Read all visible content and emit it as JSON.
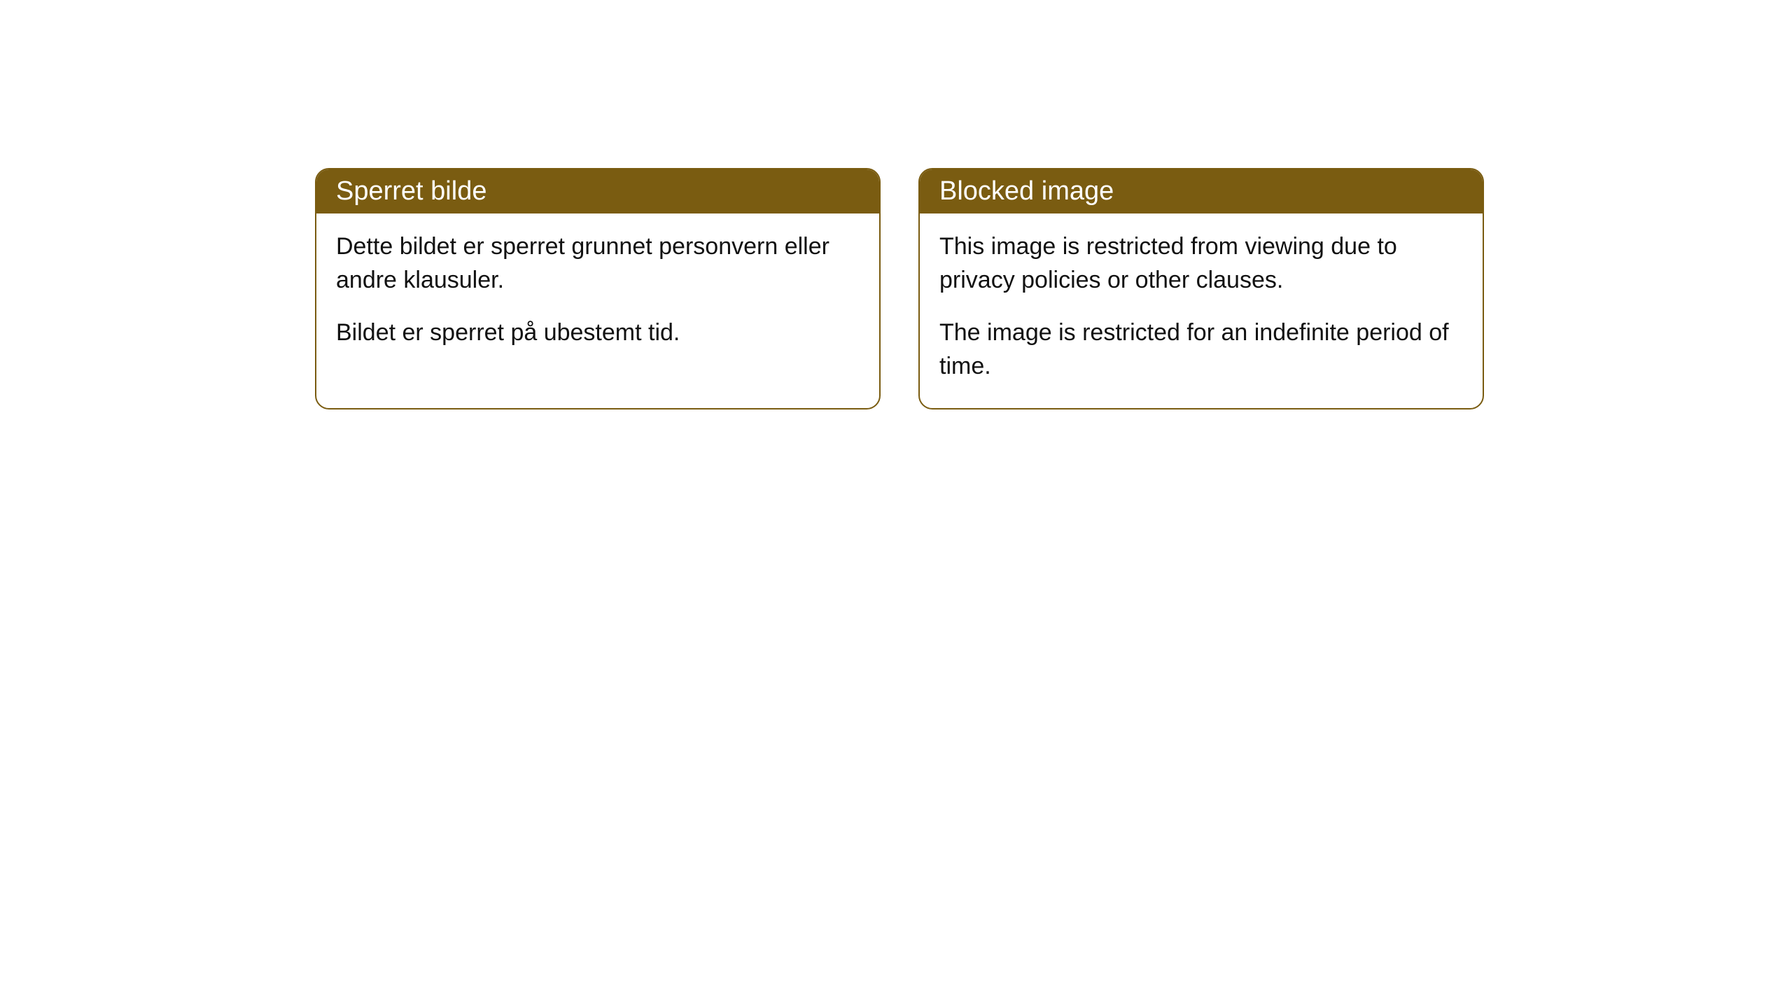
{
  "cards": [
    {
      "title": "Sperret bilde",
      "paragraph1": "Dette bildet er sperret grunnet personvern eller andre klausuler.",
      "paragraph2": "Bildet er sperret på ubestemt tid."
    },
    {
      "title": "Blocked image",
      "paragraph1": "This image is restricted from viewing due to privacy policies or other clauses.",
      "paragraph2": "The image is restricted for an indefinite period of time."
    }
  ],
  "style": {
    "header_background": "#7a5c11",
    "header_text_color": "#ffffff",
    "border_color": "#7a5c11",
    "body_text_color": "#111111",
    "card_background": "#ffffff",
    "page_background": "#ffffff",
    "border_radius": 20,
    "header_fontsize": 38,
    "body_fontsize": 34
  }
}
